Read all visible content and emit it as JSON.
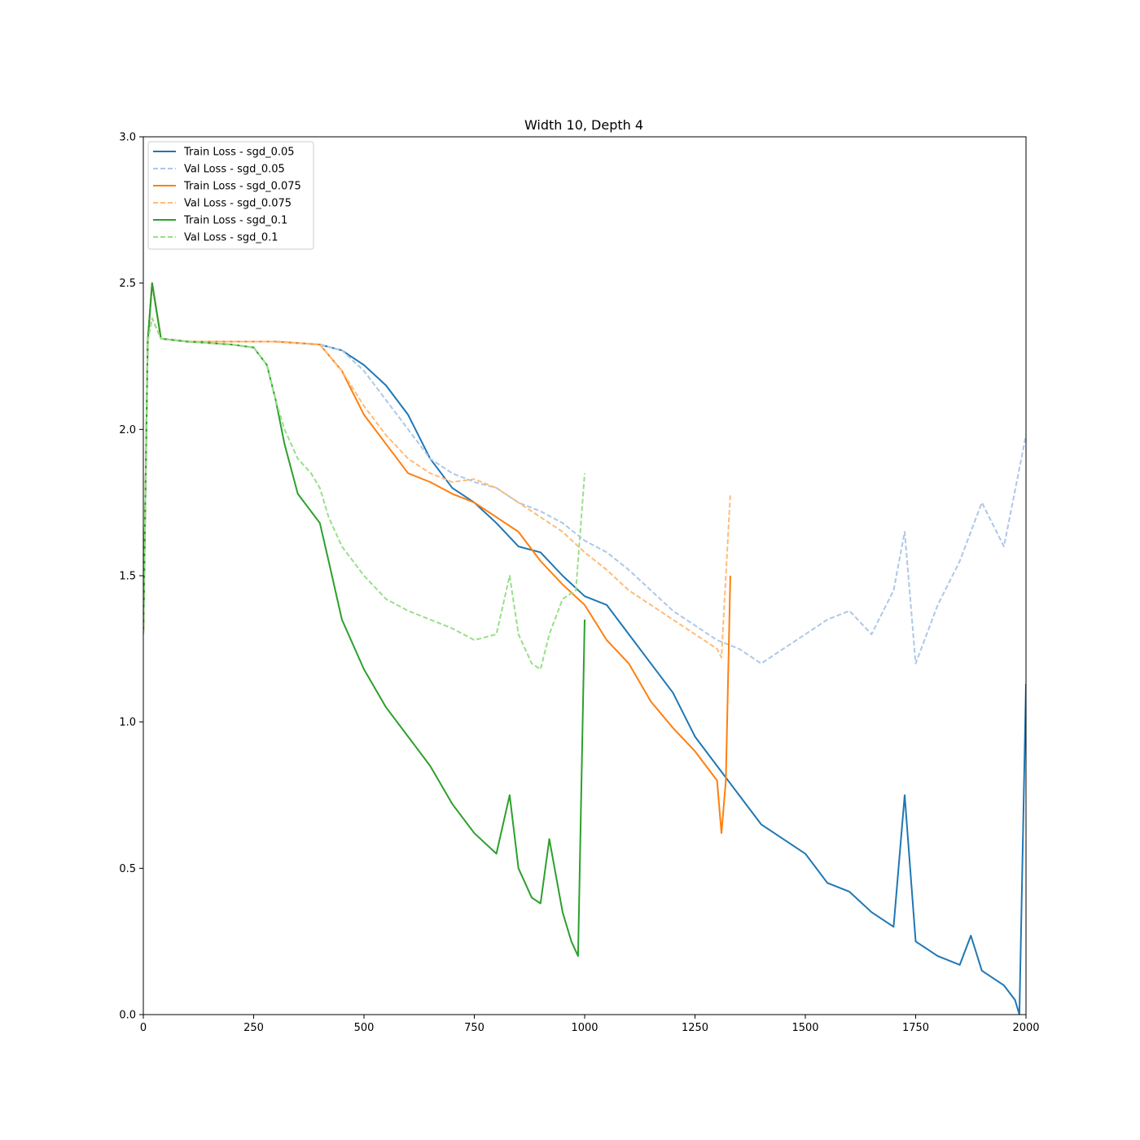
{
  "chart_data": {
    "type": "line",
    "title": "Width 10, Depth 4",
    "xlabel": "",
    "ylabel": "",
    "xlim": [
      0,
      2000
    ],
    "ylim": [
      0,
      3.0
    ],
    "xticks": [
      0,
      250,
      500,
      750,
      1000,
      1250,
      1500,
      1750,
      2000
    ],
    "xtick_labels": [
      "0",
      "250",
      "500",
      "750",
      "1000",
      "1250",
      "1500",
      "1750",
      "2000"
    ],
    "yticks": [
      0.0,
      0.5,
      1.0,
      1.5,
      2.0,
      2.5,
      3.0
    ],
    "ytick_labels": [
      "0.0",
      "0.5",
      "1.0",
      "1.5",
      "2.0",
      "2.5",
      "3.0"
    ],
    "grid": false,
    "legend_position": "top-left",
    "series": [
      {
        "name": "Train Loss - sgd_0.05",
        "color": "#1f77b4",
        "style": "solid",
        "x": [
          0,
          10,
          20,
          40,
          100,
          200,
          300,
          400,
          450,
          500,
          550,
          600,
          650,
          700,
          750,
          800,
          850,
          900,
          950,
          1000,
          1050,
          1100,
          1150,
          1200,
          1250,
          1300,
          1350,
          1400,
          1450,
          1500,
          1550,
          1600,
          1650,
          1700,
          1725,
          1750,
          1800,
          1850,
          1875,
          1900,
          1950,
          1975,
          1985,
          2000
        ],
        "y": [
          1.3,
          2.3,
          2.5,
          2.31,
          2.3,
          2.3,
          2.3,
          2.29,
          2.27,
          2.22,
          2.15,
          2.05,
          1.9,
          1.8,
          1.75,
          1.68,
          1.6,
          1.58,
          1.5,
          1.43,
          1.4,
          1.3,
          1.2,
          1.1,
          0.95,
          0.85,
          0.75,
          0.65,
          0.6,
          0.55,
          0.45,
          0.42,
          0.35,
          0.3,
          0.75,
          0.25,
          0.2,
          0.17,
          0.27,
          0.15,
          0.1,
          0.05,
          0.0,
          1.13
        ]
      },
      {
        "name": "Val Loss - sgd_0.05",
        "color": "#aec7e8",
        "style": "dashed",
        "x": [
          0,
          10,
          20,
          40,
          100,
          200,
          300,
          400,
          450,
          500,
          550,
          600,
          650,
          700,
          750,
          800,
          850,
          900,
          950,
          1000,
          1050,
          1100,
          1150,
          1200,
          1250,
          1300,
          1350,
          1400,
          1450,
          1500,
          1550,
          1600,
          1650,
          1700,
          1725,
          1750,
          1800,
          1850,
          1900,
          1950,
          2000
        ],
        "y": [
          1.3,
          2.3,
          2.38,
          2.31,
          2.3,
          2.3,
          2.3,
          2.29,
          2.27,
          2.2,
          2.1,
          2.0,
          1.9,
          1.85,
          1.82,
          1.8,
          1.75,
          1.72,
          1.68,
          1.62,
          1.58,
          1.52,
          1.45,
          1.38,
          1.33,
          1.28,
          1.25,
          1.2,
          1.25,
          1.3,
          1.35,
          1.38,
          1.3,
          1.45,
          1.65,
          1.2,
          1.4,
          1.55,
          1.75,
          1.6,
          1.98
        ]
      },
      {
        "name": "Train Loss - sgd_0.075",
        "color": "#ff7f0e",
        "style": "solid",
        "x": [
          0,
          10,
          20,
          40,
          100,
          200,
          300,
          400,
          450,
          500,
          550,
          600,
          650,
          700,
          750,
          800,
          850,
          900,
          950,
          1000,
          1050,
          1100,
          1150,
          1200,
          1250,
          1300,
          1310,
          1320,
          1330
        ],
        "y": [
          1.3,
          2.3,
          2.5,
          2.31,
          2.3,
          2.3,
          2.3,
          2.29,
          2.2,
          2.05,
          1.95,
          1.85,
          1.82,
          1.78,
          1.75,
          1.7,
          1.65,
          1.55,
          1.47,
          1.4,
          1.28,
          1.2,
          1.07,
          0.98,
          0.9,
          0.8,
          0.62,
          0.8,
          1.5
        ]
      },
      {
        "name": "Val Loss - sgd_0.075",
        "color": "#ffbb78",
        "style": "dashed",
        "x": [
          0,
          10,
          20,
          40,
          100,
          200,
          300,
          400,
          450,
          500,
          550,
          600,
          650,
          700,
          750,
          800,
          850,
          900,
          950,
          1000,
          1050,
          1100,
          1150,
          1200,
          1250,
          1300,
          1310,
          1330
        ],
        "y": [
          1.3,
          2.3,
          2.38,
          2.31,
          2.3,
          2.3,
          2.3,
          2.29,
          2.2,
          2.08,
          1.98,
          1.9,
          1.85,
          1.82,
          1.83,
          1.8,
          1.75,
          1.7,
          1.65,
          1.58,
          1.52,
          1.45,
          1.4,
          1.35,
          1.3,
          1.25,
          1.22,
          1.78
        ]
      },
      {
        "name": "Train Loss - sgd_0.1",
        "color": "#2ca02c",
        "style": "solid",
        "x": [
          0,
          10,
          20,
          40,
          100,
          200,
          250,
          280,
          300,
          320,
          350,
          400,
          420,
          450,
          500,
          550,
          600,
          650,
          700,
          750,
          800,
          830,
          850,
          880,
          900,
          920,
          950,
          970,
          985,
          1000
        ],
        "y": [
          1.3,
          2.3,
          2.5,
          2.31,
          2.3,
          2.29,
          2.28,
          2.22,
          2.1,
          1.95,
          1.78,
          1.68,
          1.55,
          1.35,
          1.18,
          1.05,
          0.95,
          0.85,
          0.72,
          0.62,
          0.55,
          0.75,
          0.5,
          0.4,
          0.38,
          0.6,
          0.35,
          0.25,
          0.2,
          1.35
        ]
      },
      {
        "name": "Val Loss - sgd_0.1",
        "color": "#98df8a",
        "style": "dashed",
        "x": [
          0,
          10,
          20,
          40,
          100,
          200,
          250,
          280,
          300,
          320,
          350,
          380,
          400,
          420,
          450,
          500,
          550,
          600,
          650,
          700,
          750,
          800,
          830,
          850,
          880,
          900,
          920,
          950,
          980,
          1000
        ],
        "y": [
          1.3,
          2.3,
          2.38,
          2.31,
          2.3,
          2.29,
          2.28,
          2.22,
          2.1,
          2.0,
          1.9,
          1.85,
          1.8,
          1.7,
          1.6,
          1.5,
          1.42,
          1.38,
          1.35,
          1.32,
          1.28,
          1.3,
          1.5,
          1.3,
          1.2,
          1.18,
          1.3,
          1.42,
          1.45,
          1.85
        ]
      }
    ]
  }
}
